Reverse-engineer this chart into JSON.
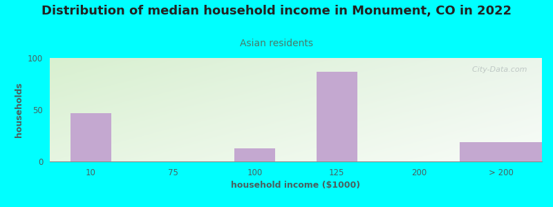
{
  "title": "Distribution of median household income in Monument, CO in 2022",
  "subtitle": "Asian residents",
  "xlabel": "household income ($1000)",
  "ylabel": "households",
  "background_outer": "#00FFFF",
  "bar_color": "#C4A8D0",
  "plot_bg_topleft": "#d8f0d0",
  "plot_bg_bottomright": "#f0f5ee",
  "categories": [
    "10",
    "75",
    "100",
    "125",
    "200",
    "> 200"
  ],
  "values": [
    47,
    0,
    13,
    87,
    0,
    19
  ],
  "ylim": [
    0,
    100
  ],
  "yticks": [
    0,
    50,
    100
  ],
  "title_color": "#222222",
  "subtitle_color": "#4a7a6a",
  "axis_label_color": "#4a6060",
  "tick_color": "#4a6060",
  "watermark": "City-Data.com",
  "title_fontsize": 13,
  "subtitle_fontsize": 10,
  "xlabel_fontsize": 9,
  "ylabel_fontsize": 9
}
